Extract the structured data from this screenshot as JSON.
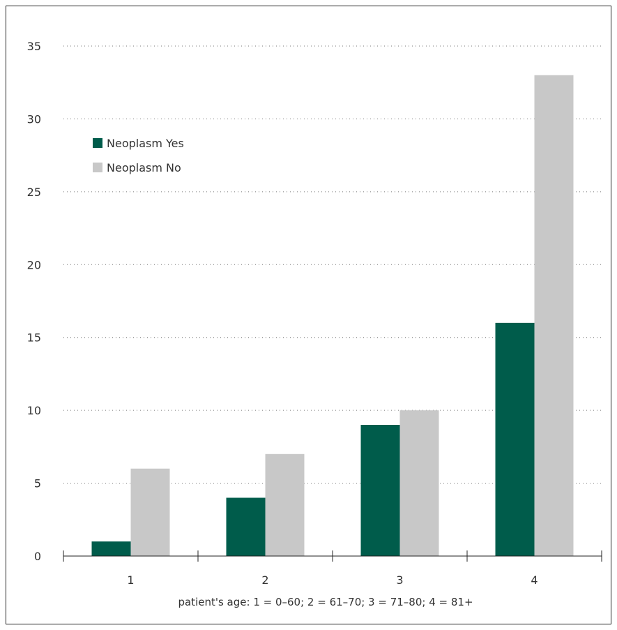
{
  "chart_data": {
    "type": "bar",
    "categories": [
      "1",
      "2",
      "3",
      "4"
    ],
    "series": [
      {
        "name": "Neoplasm Yes",
        "values": [
          1,
          4,
          9,
          16
        ],
        "color": "#005c4b"
      },
      {
        "name": "Neoplasm No",
        "values": [
          6,
          7,
          10,
          33
        ],
        "color": "#c8c8c8"
      }
    ],
    "xlabel": "patient's age: 1 = 0–60; 2 = 61–70; 3 = 71–80; 4 = 81+",
    "ylabel": "",
    "ylim": [
      0,
      35
    ],
    "yticks": [
      0,
      5,
      10,
      15,
      20,
      25,
      30,
      35
    ],
    "grid": "horizontal-dotted",
    "legend_position": "top-left"
  }
}
